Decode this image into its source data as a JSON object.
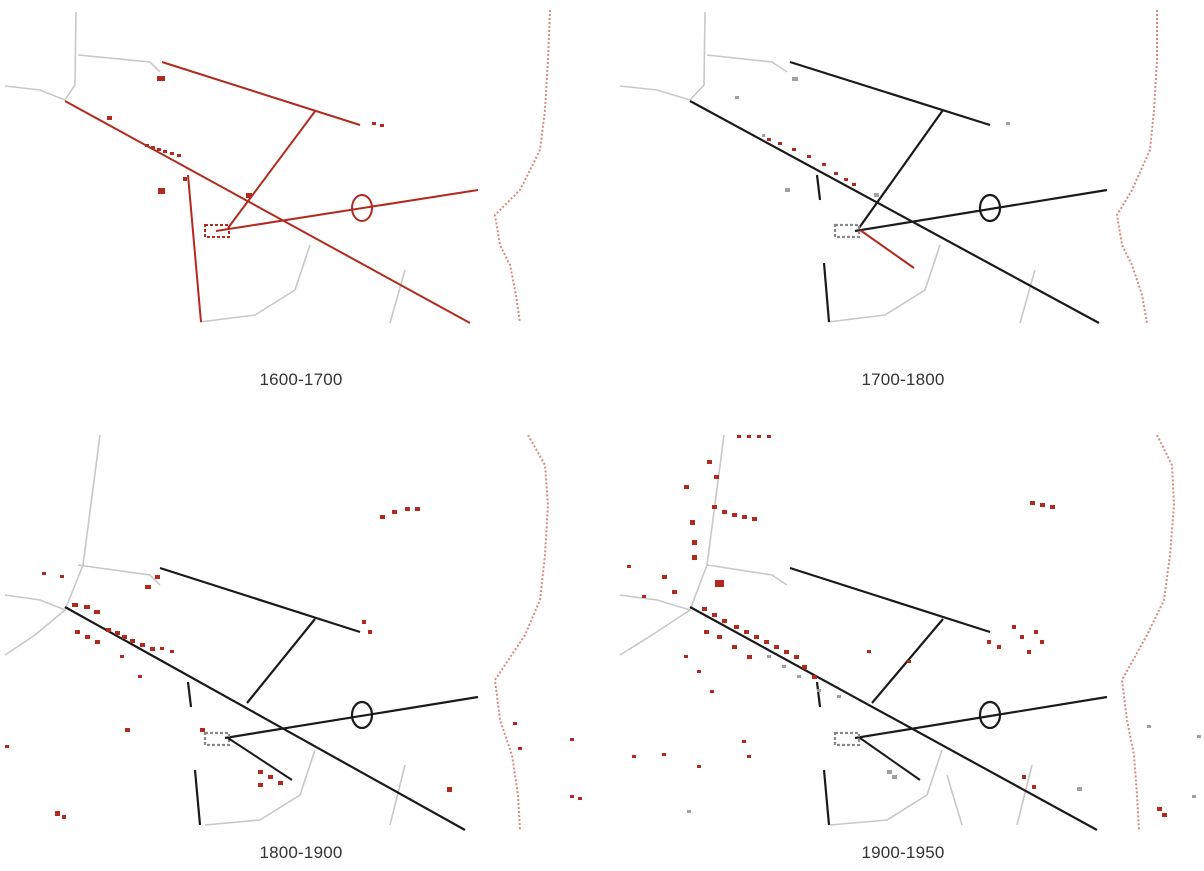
{
  "figure": {
    "panels": [
      {
        "id": "p1",
        "label": "1600-1700"
      },
      {
        "id": "p2",
        "label": "1700-1800"
      },
      {
        "id": "p3",
        "label": "1800-1900"
      },
      {
        "id": "p4",
        "label": "1900-1950"
      }
    ]
  },
  "legend_colors": {
    "new_element": "#b22a1e",
    "existing_element": "#1a1a1a",
    "background_road": "#c8c8c8",
    "coastline": "#d88a82"
  }
}
